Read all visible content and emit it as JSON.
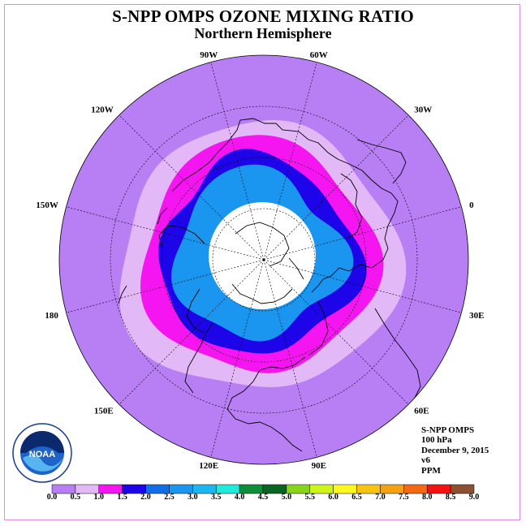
{
  "title": "S-NPP OMPS OZONE MIXING RATIO",
  "subtitle": "Northern Hemisphere",
  "longitude_labels": [
    {
      "text": "90E",
      "lon": 90
    },
    {
      "text": "60E",
      "lon": 60
    },
    {
      "text": "30E",
      "lon": 30
    },
    {
      "text": "0",
      "lon": 0
    },
    {
      "text": "30W",
      "lon": -30
    },
    {
      "text": "60W",
      "lon": -60
    },
    {
      "text": "90W",
      "lon": -90
    },
    {
      "text": "120W",
      "lon": -120
    },
    {
      "text": "150W",
      "lon": -150
    },
    {
      "text": "180",
      "lon": 180
    },
    {
      "text": "150E",
      "lon": 150
    },
    {
      "text": "120E",
      "lon": 120
    }
  ],
  "info": {
    "instrument": "S-NPP OMPS",
    "level": "100 hPa",
    "date": "December 9, 2015",
    "version": "v6",
    "units": "PPM"
  },
  "logo": {
    "text": "NOAA",
    "ring_text": "NATIONAL OCEANIC AND ATMOSPHERIC ADMINISTRATION · U.S. DEPARTMENT OF COMMERCE"
  },
  "colorbar": {
    "labels": [
      "0.0",
      "0.5",
      "1.0",
      "1.5",
      "2.0",
      "2.5",
      "3.0",
      "3.5",
      "4.0",
      "4.5",
      "5.0",
      "5.5",
      "6.0",
      "6.5",
      "7.0",
      "7.5",
      "8.0",
      "8.5",
      "9.0"
    ],
    "colors": [
      "#b87ff5",
      "#e2b8f7",
      "#f515f0",
      "#1e04e8",
      "#126ee8",
      "#1a96f0",
      "#1bb7f0",
      "#20ead9",
      "#108e37",
      "#086622",
      "#88d41a",
      "#cff41c",
      "#fff71f",
      "#f8c414",
      "#f5a212",
      "#f56912",
      "#f51212",
      "#8c5033"
    ]
  },
  "map_colors": {
    "outer": "#b87ff5",
    "ring_light": "#e2b8f7",
    "ring_magenta": "#f515f0",
    "ring_blue": "#1e04e8",
    "ring_lightblue": "#1a96f0",
    "core": "#ffffff"
  }
}
